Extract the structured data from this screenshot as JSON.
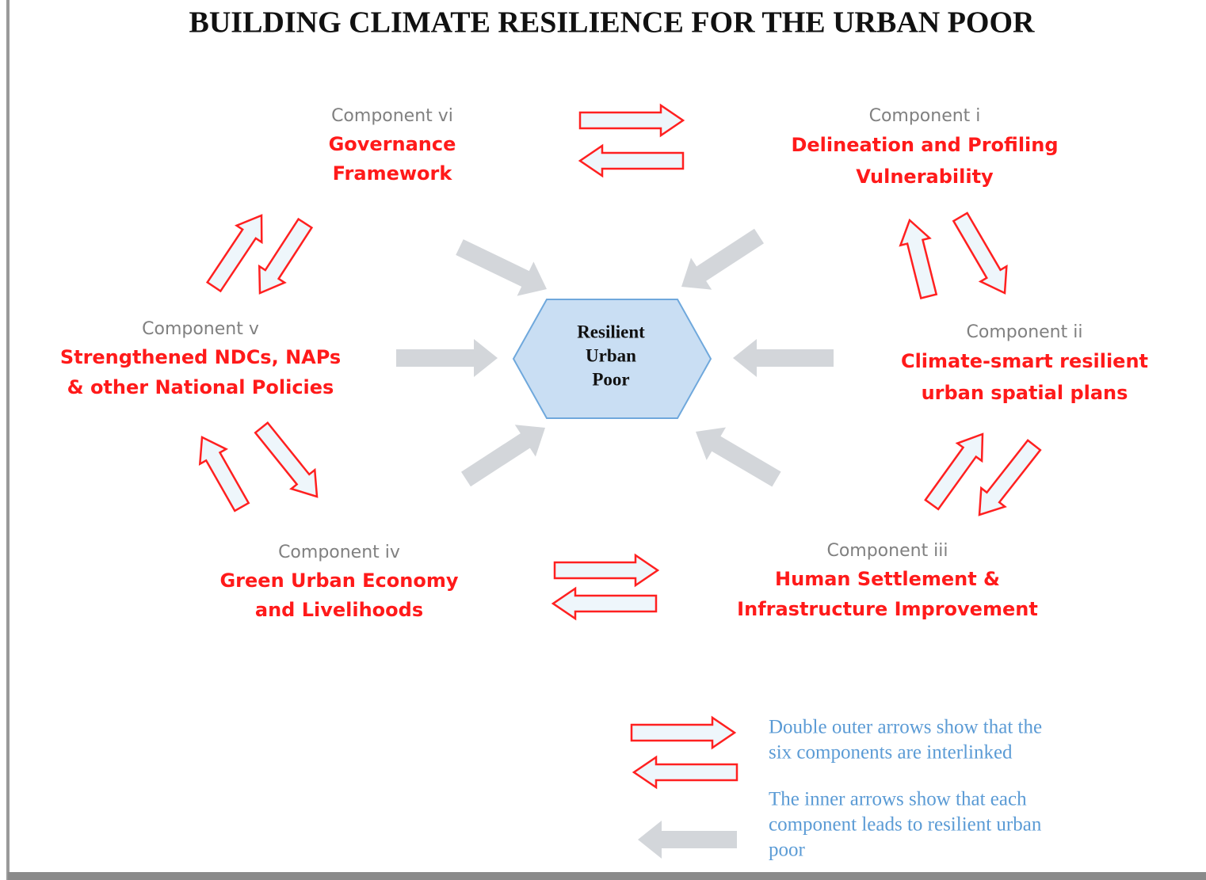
{
  "title": "BUILDING CLIMATE RESILIENCE FOR THE URBAN POOR",
  "center": {
    "lines": [
      "Resilient",
      "Urban",
      "Poor"
    ]
  },
  "components": [
    {
      "label": "Component i",
      "name": [
        "Delineation and Profiling",
        "Vulnerability"
      ]
    },
    {
      "label": "Component ii",
      "name": [
        "Climate-smart resilient",
        "urban spatial plans"
      ]
    },
    {
      "label": "Component iii",
      "name": [
        "Human Settlement &",
        "Infrastructure Improvement"
      ]
    },
    {
      "label": "Component iv",
      "name": [
        "Green Urban Economy",
        "and Livelihoods"
      ]
    },
    {
      "label": "Component v",
      "name": [
        "Strengthened NDCs, NAPs",
        "& other National Policies"
      ]
    },
    {
      "label": "Component vi",
      "name": [
        "Governance",
        "Framework"
      ]
    }
  ],
  "legend": [
    {
      "lines": [
        "Double outer arrows show that the",
        "six components are interlinked"
      ]
    },
    {
      "lines": [
        "The inner arrows show that each",
        "component leads to resilient urban",
        "poor"
      ]
    }
  ]
}
